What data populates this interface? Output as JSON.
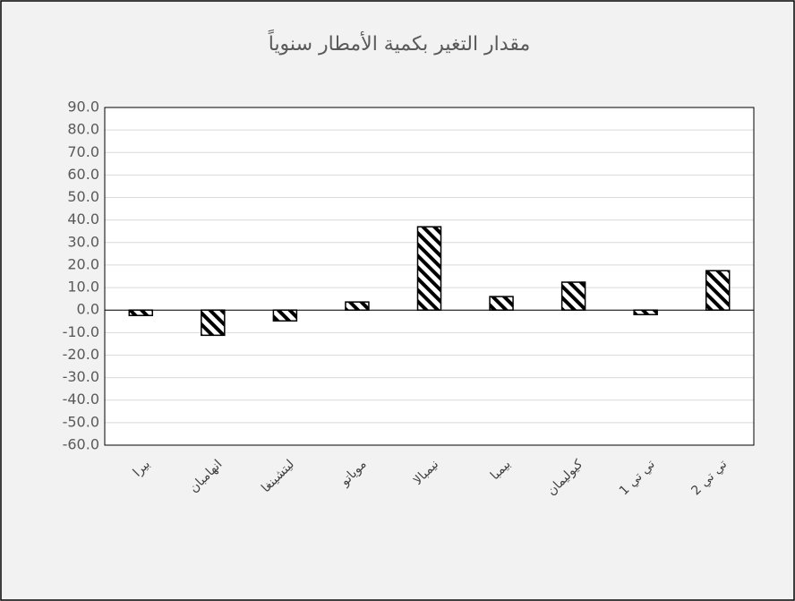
{
  "chart_data": {
    "type": "bar",
    "title": "مقدار التغير بكمية الأمطار سنوياً",
    "categories": [
      "بيرا",
      "انهامبان",
      "ليتشينغا",
      "موياتو",
      "نيمبالا",
      "بيمبا",
      "كيوليمان",
      "تي تي 1",
      "تي تي 2"
    ],
    "values": [
      -2.4,
      -11.2,
      -4.8,
      3.6,
      37,
      6,
      12.4,
      -2,
      17.5
    ],
    "color": "#000000",
    "ylim": [
      -60,
      90
    ],
    "yticks": [
      {
        "value": 90,
        "label": "90.0"
      },
      {
        "value": 80,
        "label": "80.0"
      },
      {
        "value": 70,
        "label": "70.0"
      },
      {
        "value": 60,
        "label": "60.0"
      },
      {
        "value": 50,
        "label": "50.0"
      },
      {
        "value": 40,
        "label": "40.0"
      },
      {
        "value": 30,
        "label": "30.0"
      },
      {
        "value": 20,
        "label": "20.0"
      },
      {
        "value": 10,
        "label": "10.0"
      },
      {
        "value": 0,
        "label": "0.0"
      },
      {
        "value": -10,
        "label": "-10.0"
      },
      {
        "value": -20,
        "label": "-20.0"
      },
      {
        "value": -30,
        "label": "-30.0"
      },
      {
        "value": -40,
        "label": "-40.0"
      },
      {
        "value": -50,
        "label": "-50.0"
      },
      {
        "value": -60,
        "label": "-60.0"
      }
    ],
    "grid": true
  }
}
